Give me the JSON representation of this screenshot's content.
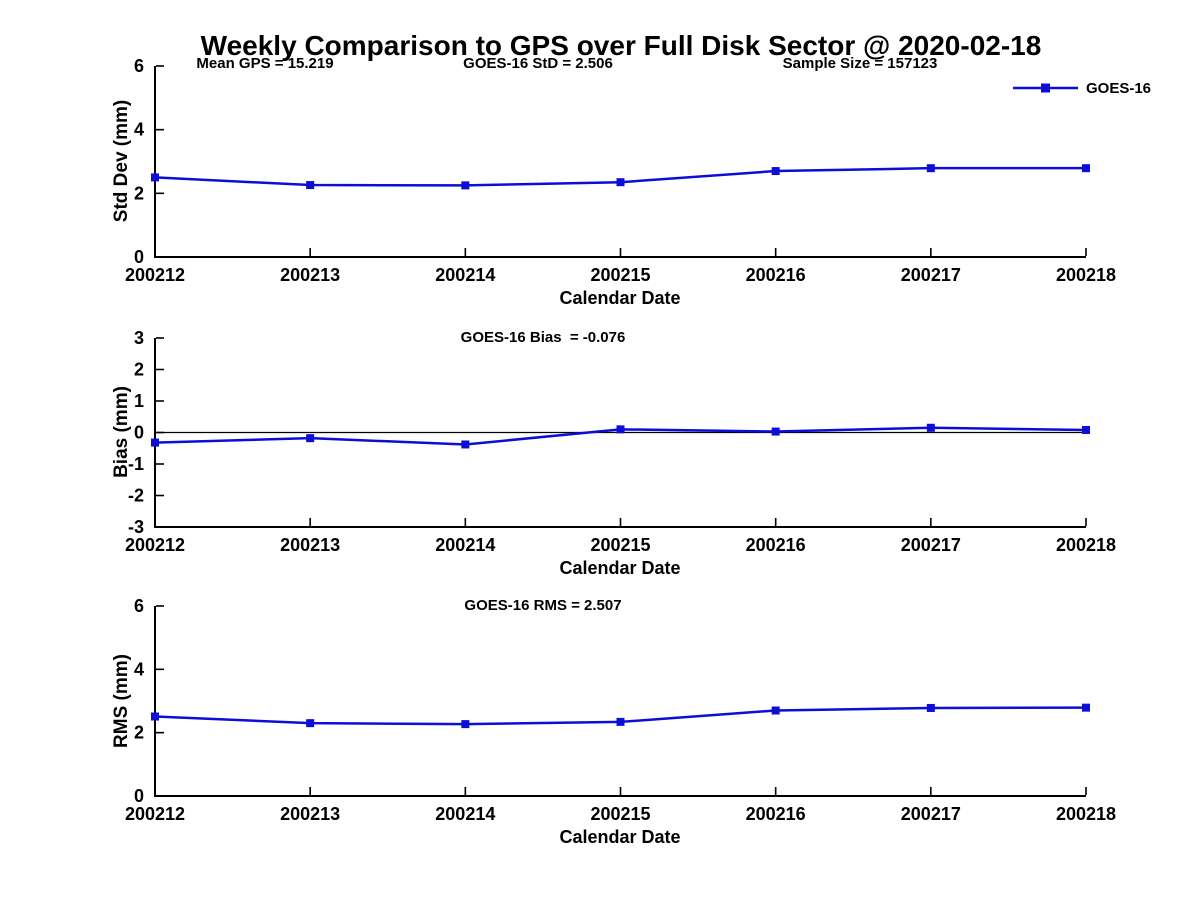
{
  "title": "Weekly Comparison to GPS over Full Disk Sector @ 2020-02-18",
  "header_stats": {
    "mean_gps": "Mean GPS = 15.219",
    "std": "GOES-16 StD = 2.506",
    "sample_size": "Sample Size = 157123"
  },
  "legend": {
    "label": "GOES-16",
    "position": "top-right"
  },
  "colors": {
    "line": "#0d0dd8",
    "axis": "#000000",
    "text": "#000000",
    "background": "#ffffff"
  },
  "chart_data": [
    {
      "type": "line",
      "series_name": "GOES-16",
      "categories": [
        "200212",
        "200213",
        "200214",
        "200215",
        "200216",
        "200217",
        "200218"
      ],
      "values": [
        2.5,
        2.26,
        2.25,
        2.35,
        2.7,
        2.79,
        2.79
      ],
      "annotation": "",
      "xlabel": "Calendar Date",
      "ylabel": "Std Dev (mm)",
      "ylim": [
        0,
        6
      ],
      "yticks": [
        0,
        2,
        4,
        6
      ],
      "zero_line": false,
      "grid": false
    },
    {
      "type": "line",
      "series_name": "GOES-16",
      "categories": [
        "200212",
        "200213",
        "200214",
        "200215",
        "200216",
        "200217",
        "200218"
      ],
      "values": [
        -0.32,
        -0.18,
        -0.38,
        0.1,
        0.03,
        0.15,
        0.08
      ],
      "annotation": "GOES-16 Bias  = -0.076",
      "xlabel": "Calendar Date",
      "ylabel": "Bias (mm)",
      "ylim": [
        -3,
        3
      ],
      "yticks": [
        -3,
        -2,
        -1,
        0,
        1,
        2,
        3
      ],
      "zero_line": true,
      "grid": false
    },
    {
      "type": "line",
      "series_name": "GOES-16",
      "categories": [
        "200212",
        "200213",
        "200214",
        "200215",
        "200216",
        "200217",
        "200218"
      ],
      "values": [
        2.51,
        2.3,
        2.27,
        2.34,
        2.7,
        2.78,
        2.79
      ],
      "annotation": "GOES-16 RMS = 2.507",
      "xlabel": "Calendar Date",
      "ylabel": "RMS (mm)",
      "ylim": [
        0,
        6
      ],
      "yticks": [
        0,
        2,
        4,
        6
      ],
      "zero_line": false,
      "grid": false
    }
  ]
}
